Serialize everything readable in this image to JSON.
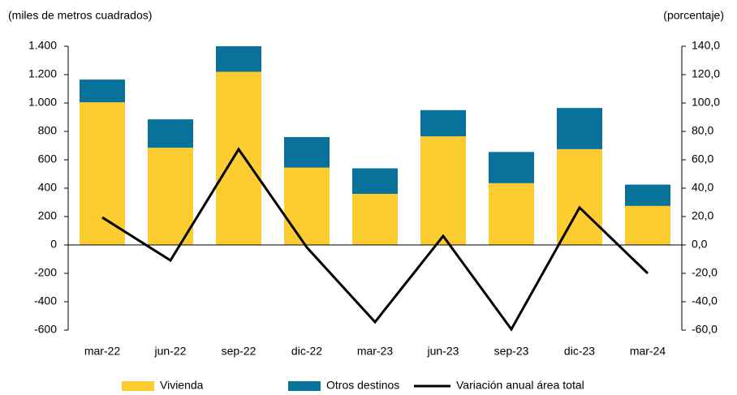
{
  "chart_data": {
    "type": "bar",
    "stacked": true,
    "y_label": "(miles de metros cuadrados)",
    "y2_label": "(porcentaje)",
    "categories": [
      "mar-22",
      "jun-22",
      "sep-22",
      "dic-22",
      "mar-23",
      "jun-23",
      "sep-23",
      "dic-23",
      "mar-24"
    ],
    "series": [
      {
        "name": "Vivienda",
        "color": "#fccc31",
        "type": "bar",
        "values": [
          1005,
          685,
          1220,
          545,
          360,
          765,
          435,
          675,
          275
        ]
      },
      {
        "name": "Otros destinos",
        "color": "#08729a",
        "type": "bar",
        "values": [
          160,
          200,
          180,
          215,
          180,
          185,
          220,
          290,
          150
        ]
      },
      {
        "name": "Variación anual área total",
        "color": "#000000",
        "type": "line",
        "axis": "y2",
        "values": [
          19.4,
          -10.9,
          67.4,
          -1.7,
          -54.3,
          6.3,
          -59.4,
          26.3,
          -20
        ]
      }
    ],
    "ylim": [
      -600,
      1400
    ],
    "yticks": [
      -600,
      -400,
      -200,
      0,
      200,
      400,
      600,
      800,
      {
        "value": 1000,
        "label": "1.000"
      },
      {
        "value": 1200,
        "label": "1.200"
      },
      {
        "value": 1400,
        "label": "1.400"
      }
    ],
    "y2lim": [
      -60,
      140
    ],
    "y2ticks": [
      {
        "value": -60,
        "label": "-60,0"
      },
      {
        "value": -40,
        "label": "-40,0"
      },
      {
        "value": -20,
        "label": "-20,0"
      },
      {
        "value": 0,
        "label": "0,0"
      },
      {
        "value": 20,
        "label": "20,0"
      },
      {
        "value": 40,
        "label": "40,0"
      },
      {
        "value": 60,
        "label": "60,0"
      },
      {
        "value": 80,
        "label": "80,0"
      },
      {
        "value": 100,
        "label": "100,0"
      },
      {
        "value": 120,
        "label": "120,0"
      },
      {
        "value": 140,
        "label": "140,0"
      }
    ]
  }
}
